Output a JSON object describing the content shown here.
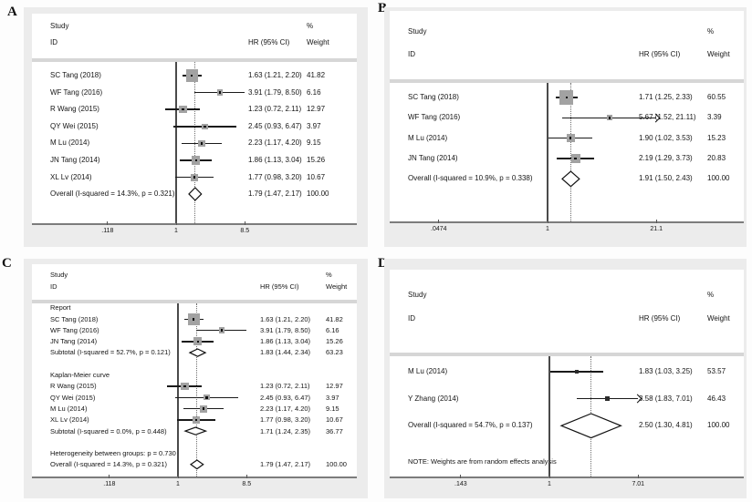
{
  "figure": {
    "background": "#ffffff",
    "panel_background": "#ececec",
    "plot_background": "#ffffff",
    "marker_color": "#a2a2a2",
    "marker_color_dark": "#2b2b2b",
    "ci_line_color": "#1a1a1a",
    "separator_color": "#d6d6d6",
    "axis_color": "#7c7c7c"
  },
  "chart_data": [
    {
      "type": "scatter",
      "subtype": "forest-plot",
      "label": "A",
      "columns": {
        "study": "Study",
        "id": "ID",
        "pct": "%",
        "weight": "Weight",
        "hr": "HR (95% CI)"
      },
      "xscale": "log",
      "xticks": [
        ".118",
        "1",
        "8.5"
      ],
      "xtick_values": [
        0.118,
        1,
        8.5
      ],
      "null_line": 1,
      "dashed_line": 1.79,
      "rows": [
        {
          "type": "study",
          "id": "SC Tang (2018)",
          "hr": 1.63,
          "lo": 1.21,
          "hi": 2.2,
          "hr_text": "1.63 (1.21, 2.20)",
          "weight": "41.82"
        },
        {
          "type": "study",
          "id": "WF Tang (2016)",
          "hr": 3.91,
          "lo": 1.79,
          "hi": 8.5,
          "hr_text": "3.91 (1.79, 8.50)",
          "weight": "6.16"
        },
        {
          "type": "study",
          "id": "R Wang (2015)",
          "hr": 1.23,
          "lo": 0.72,
          "hi": 2.11,
          "hr_text": "1.23 (0.72, 2.11)",
          "weight": "12.97"
        },
        {
          "type": "study",
          "id": "QY Wei (2015)",
          "hr": 2.45,
          "lo": 0.93,
          "hi": 6.47,
          "hr_text": "2.45 (0.93, 6.47)",
          "weight": "3.97"
        },
        {
          "type": "study",
          "id": "M Lu (2014)",
          "hr": 2.23,
          "lo": 1.17,
          "hi": 4.2,
          "hr_text": "2.23 (1.17, 4.20)",
          "weight": "9.15"
        },
        {
          "type": "study",
          "id": "JN Tang (2014)",
          "hr": 1.86,
          "lo": 1.13,
          "hi": 3.04,
          "hr_text": "1.86 (1.13, 3.04)",
          "weight": "15.26"
        },
        {
          "type": "study",
          "id": "XL Lv (2014)",
          "hr": 1.77,
          "lo": 0.98,
          "hi": 3.2,
          "hr_text": "1.77 (0.98, 3.20)",
          "weight": "10.67"
        },
        {
          "type": "overall",
          "id": "Overall  (I-squared = 14.3%, p = 0.321)",
          "hr": 1.79,
          "lo": 1.47,
          "hi": 2.17,
          "hr_text": "1.79 (1.47, 2.17)",
          "weight": "100.00"
        }
      ]
    },
    {
      "type": "scatter",
      "subtype": "forest-plot",
      "label": "B",
      "columns": {
        "study": "Study",
        "id": "ID",
        "pct": "%",
        "weight": "Weight",
        "hr": "HR (95% CI)"
      },
      "xscale": "log",
      "xticks": [
        ".0474",
        "1",
        "21.1"
      ],
      "xtick_values": [
        0.0474,
        1,
        21.1
      ],
      "null_line": 1,
      "dashed_line": 1.91,
      "rows": [
        {
          "type": "study",
          "id": "SC Tang (2018)",
          "hr": 1.71,
          "lo": 1.25,
          "hi": 2.33,
          "hr_text": "1.71 (1.25, 2.33)",
          "weight": "60.55"
        },
        {
          "type": "study",
          "id": "WF Tang (2016)",
          "hr": 5.67,
          "lo": 1.52,
          "hi": 21.11,
          "hr_text": "5.67 (1.52, 21.11)",
          "weight": "3.39",
          "arrow": true
        },
        {
          "type": "study",
          "id": "M Lu (2014)",
          "hr": 1.9,
          "lo": 1.02,
          "hi": 3.53,
          "hr_text": "1.90 (1.02, 3.53)",
          "weight": "15.23"
        },
        {
          "type": "study",
          "id": "JN Tang (2014)",
          "hr": 2.19,
          "lo": 1.29,
          "hi": 3.73,
          "hr_text": "2.19 (1.29, 3.73)",
          "weight": "20.83"
        },
        {
          "type": "overall",
          "id": "Overall  (I-squared = 10.9%, p = 0.338)",
          "hr": 1.91,
          "lo": 1.5,
          "hi": 2.43,
          "hr_text": "1.91 (1.50, 2.43)",
          "weight": "100.00"
        }
      ]
    },
    {
      "type": "scatter",
      "subtype": "forest-plot",
      "label": "C",
      "columns": {
        "study": "Study",
        "id": "ID",
        "pct": "%",
        "weight": "Weight",
        "hr": "HR (95% CI)"
      },
      "xscale": "log",
      "xticks": [
        ".118",
        "1",
        "8.5"
      ],
      "xtick_values": [
        0.118,
        1,
        8.5
      ],
      "null_line": 1,
      "dashed_line": 1.79,
      "rows": [
        {
          "type": "group",
          "id": "Report"
        },
        {
          "type": "study",
          "id": "SC Tang (2018)",
          "hr": 1.63,
          "lo": 1.21,
          "hi": 2.2,
          "hr_text": "1.63 (1.21, 2.20)",
          "weight": "41.82"
        },
        {
          "type": "study",
          "id": "WF Tang (2016)",
          "hr": 3.91,
          "lo": 1.79,
          "hi": 8.5,
          "hr_text": "3.91 (1.79, 8.50)",
          "weight": "6.16"
        },
        {
          "type": "study",
          "id": "JN Tang (2014)",
          "hr": 1.86,
          "lo": 1.13,
          "hi": 3.04,
          "hr_text": "1.86 (1.13, 3.04)",
          "weight": "15.26"
        },
        {
          "type": "subtotal",
          "id": "Subtotal  (I-squared = 52.7%, p = 0.121)",
          "hr": 1.83,
          "lo": 1.44,
          "hi": 2.34,
          "hr_text": "1.83 (1.44, 2.34)",
          "weight": "63.23"
        },
        {
          "type": "spacer"
        },
        {
          "type": "group",
          "id": "Kaplan-Meier curve"
        },
        {
          "type": "study",
          "id": "R Wang (2015)",
          "hr": 1.23,
          "lo": 0.72,
          "hi": 2.11,
          "hr_text": "1.23 (0.72, 2.11)",
          "weight": "12.97"
        },
        {
          "type": "study",
          "id": "QY Wei (2015)",
          "hr": 2.45,
          "lo": 0.93,
          "hi": 6.47,
          "hr_text": "2.45 (0.93, 6.47)",
          "weight": "3.97"
        },
        {
          "type": "study",
          "id": "M Lu (2014)",
          "hr": 2.23,
          "lo": 1.17,
          "hi": 4.2,
          "hr_text": "2.23 (1.17, 4.20)",
          "weight": "9.15"
        },
        {
          "type": "study",
          "id": "XL Lv (2014)",
          "hr": 1.77,
          "lo": 0.98,
          "hi": 3.2,
          "hr_text": "1.77 (0.98, 3.20)",
          "weight": "10.67"
        },
        {
          "type": "subtotal",
          "id": "Subtotal  (I-squared = 0.0%, p = 0.448)",
          "hr": 1.71,
          "lo": 1.24,
          "hi": 2.35,
          "hr_text": "1.71 (1.24, 2.35)",
          "weight": "36.77"
        },
        {
          "type": "spacer"
        },
        {
          "type": "text",
          "id": "Heterogeneity between groups: p = 0.730"
        },
        {
          "type": "overall",
          "id": "Overall  (I-squared = 14.3%, p = 0.321)",
          "hr": 1.79,
          "lo": 1.47,
          "hi": 2.17,
          "hr_text": "1.79 (1.47, 2.17)",
          "weight": "100.00"
        }
      ]
    },
    {
      "type": "scatter",
      "subtype": "forest-plot",
      "label": "D",
      "columns": {
        "study": "Study",
        "id": "ID",
        "pct": "%",
        "weight": "Weight",
        "hr": "HR (95% CI)"
      },
      "xscale": "log",
      "xticks": [
        ".143",
        "1",
        "7.01"
      ],
      "xtick_values": [
        0.143,
        1,
        7.01
      ],
      "null_line": 1,
      "dashed_line": 2.5,
      "note": "NOTE: Weights are from random effects analysis",
      "rows": [
        {
          "type": "study",
          "id": "M Lu (2014)",
          "hr": 1.83,
          "lo": 1.03,
          "hi": 3.25,
          "hr_text": "1.83 (1.03, 3.25)",
          "weight": "53.57"
        },
        {
          "type": "study",
          "id": "Y Zhang (2014)",
          "hr": 3.58,
          "lo": 1.83,
          "hi": 7.01,
          "hr_text": "3.58 (1.83, 7.01)",
          "weight": "46.43",
          "arrow": true
        },
        {
          "type": "overall",
          "id": "Overall  (I-squared = 54.7%, p = 0.137)",
          "hr": 2.5,
          "lo": 1.3,
          "hi": 4.81,
          "hr_text": "2.50 (1.30, 4.81)",
          "weight": "100.00"
        }
      ]
    }
  ]
}
